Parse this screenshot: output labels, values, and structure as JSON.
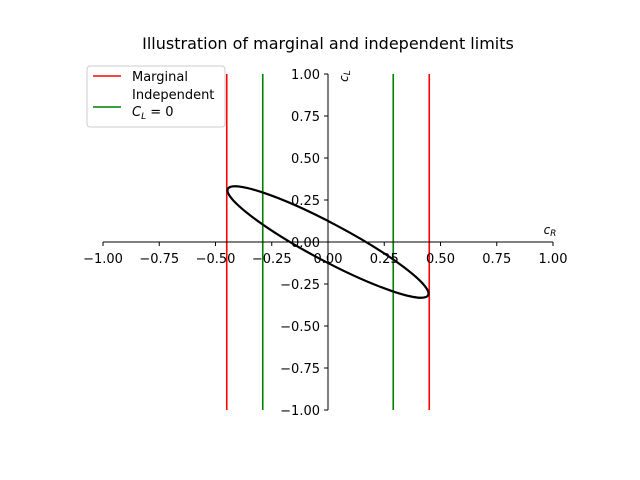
{
  "chart_data": {
    "type": "line",
    "title": "Illustration of marginal and independent limits",
    "xlabel": "c_R",
    "ylabel": "c_L",
    "xlim": [
      -1.0,
      1.0
    ],
    "ylim": [
      -1.0,
      1.0
    ],
    "xticks": [
      "−1.00",
      "−0.75",
      "−0.50",
      "−0.25",
      "0.00",
      "0.25",
      "0.50",
      "0.75",
      "1.00"
    ],
    "yticks": [
      "−1.00",
      "−0.75",
      "−0.50",
      "−0.25",
      "0.00",
      "0.25",
      "0.50",
      "0.75",
      "1.00"
    ],
    "grid": false,
    "legend_position": "upper-left",
    "legend": [
      {
        "label": "Marginal",
        "color": "#ff0000"
      },
      {
        "label": "Independent",
        "label_line2": "C_L = 0",
        "color": "#008000"
      }
    ],
    "series": [
      {
        "name": "Marginal",
        "color": "#ff0000",
        "kind": "vline",
        "x": [
          -0.45,
          0.45
        ]
      },
      {
        "name": "Independent C_L = 0",
        "color": "#008000",
        "kind": "vline",
        "x": [
          -0.29,
          0.29
        ]
      }
    ],
    "ellipse": {
      "color": "#000000",
      "center": [
        0.0,
        0.0
      ],
      "semi_major": 0.504,
      "semi_minor": 0.111,
      "angle_deg": -28
    }
  }
}
